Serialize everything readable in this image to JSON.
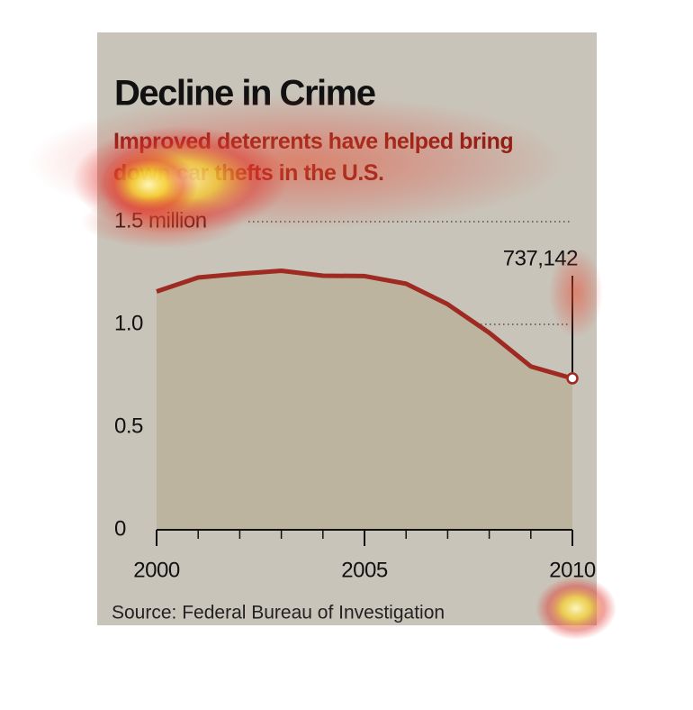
{
  "chart_data": {
    "type": "line",
    "title": "Decline in Crime",
    "subtitle": "Improved deterrents have helped bring down car thefts in the U.S.",
    "source": "Source: Federal Bureau of Investigation",
    "x": [
      2000,
      2001,
      2002,
      2003,
      2004,
      2005,
      2006,
      2007,
      2008,
      2009,
      2010
    ],
    "values": [
      1.16,
      1.228,
      1.246,
      1.261,
      1.237,
      1.235,
      1.198,
      1.098,
      0.959,
      0.795,
      0.737142
    ],
    "value_labels": [
      null,
      null,
      null,
      null,
      null,
      null,
      null,
      null,
      null,
      null,
      "737,142"
    ],
    "color": "#9e2a22",
    "area_color": "#bdb49f",
    "xlim": [
      2000,
      2010
    ],
    "xticks": [
      2000,
      2005,
      2010
    ],
    "ylim": [
      0,
      1.5
    ],
    "yticks": [
      0,
      0.5,
      {
        "value": 1,
        "label": "1.0"
      },
      {
        "value": 1.5,
        "label": "1.5 million"
      }
    ],
    "grid": true
  }
}
